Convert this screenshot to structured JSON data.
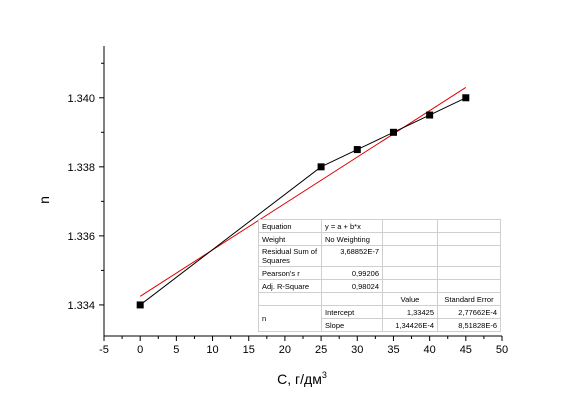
{
  "chart_data": {
    "type": "scatter",
    "xlabel": "C, г/дм",
    "xlabel_sup": "3",
    "ylabel": "n",
    "xlim": [
      -5,
      50
    ],
    "ylim": [
      1.3331,
      1.3415
    ],
    "xticks": [
      -5,
      0,
      5,
      10,
      15,
      20,
      25,
      30,
      35,
      40,
      45,
      50
    ],
    "xtick_labels": [
      "-5",
      "0",
      "5",
      "10",
      "15",
      "20",
      "25",
      "30",
      "35",
      "40",
      "45",
      "50"
    ],
    "yticks": [
      1.334,
      1.336,
      1.338,
      1.34
    ],
    "ytick_labels": [
      "1.334",
      "1.336",
      "1.338",
      "1.340"
    ],
    "series": [
      {
        "x": [
          0,
          25,
          30,
          35,
          40,
          45
        ],
        "y": [
          1.334,
          1.338,
          1.3385,
          1.339,
          1.3395,
          1.34
        ],
        "color": "#000000",
        "marker": "square",
        "line": true
      }
    ],
    "fit": {
      "intercept": 1.33425,
      "slope": 0.000134426,
      "x_range": [
        0,
        45
      ],
      "color": "#e00000"
    },
    "grid": false
  },
  "fit_table": {
    "rows": [
      [
        "Equation",
        "y = a + b*x"
      ],
      [
        "Weight",
        "No Weighting"
      ],
      [
        "Residual Sum of Squares",
        "3,68852E-7"
      ],
      [
        "Pearson's r",
        "0,99206"
      ],
      [
        "Adj. R-Square",
        "0,98024"
      ]
    ],
    "header": [
      "Value",
      "Standard Error"
    ],
    "param_label": "n",
    "params": [
      [
        "Intercept",
        "1,33425",
        "2,77662E-4"
      ],
      [
        "Slope",
        "1,34426E-4",
        "8,51828E-6"
      ]
    ]
  }
}
